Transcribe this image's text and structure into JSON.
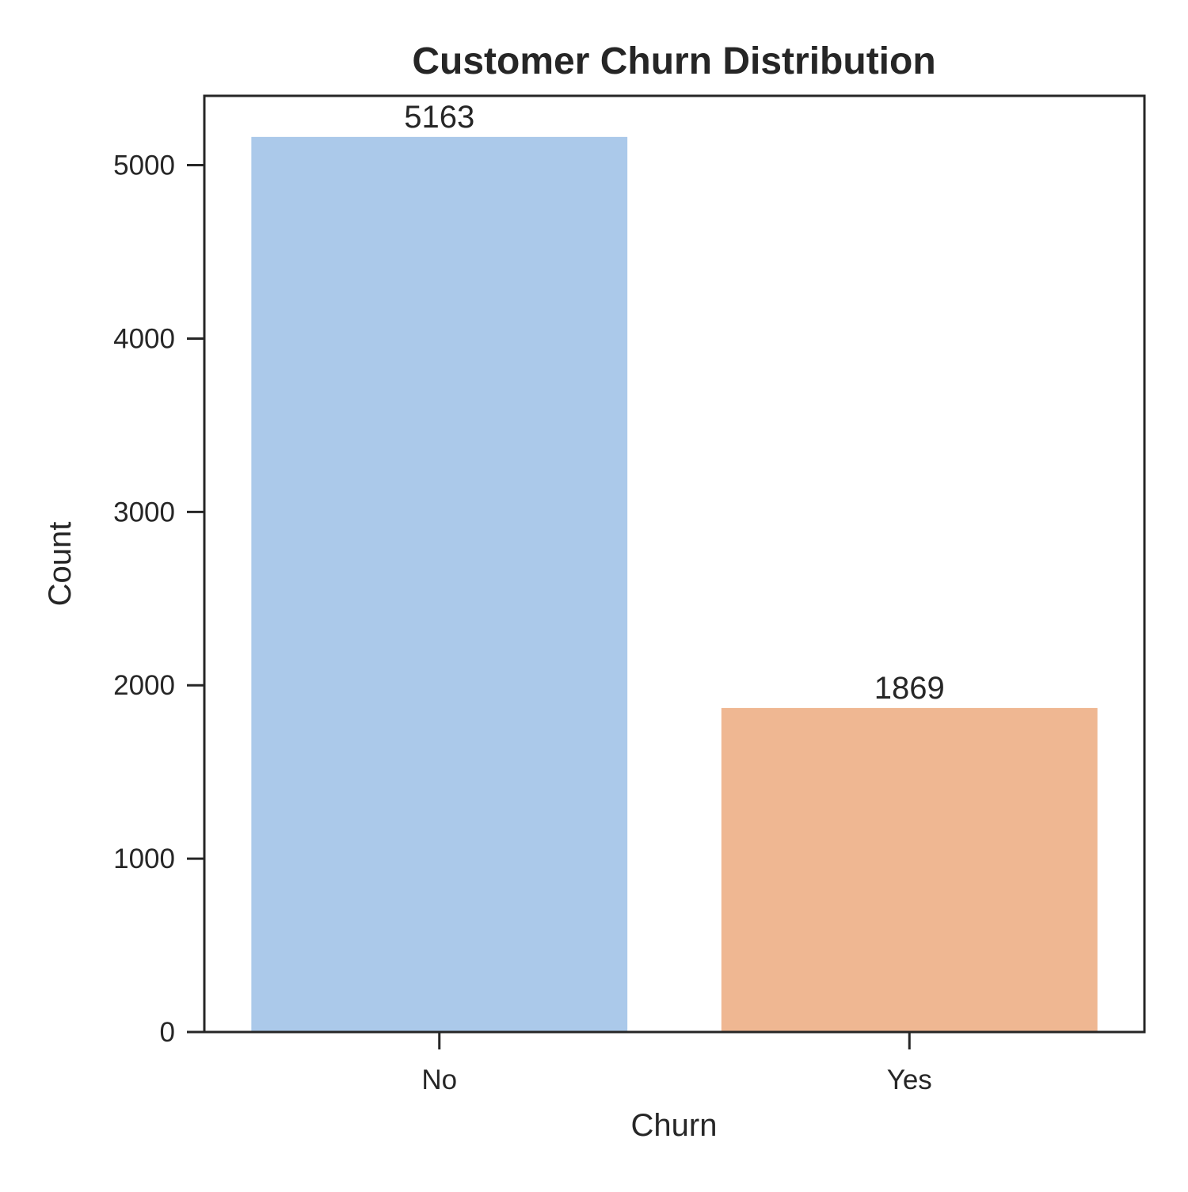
{
  "chart_data": {
    "type": "bar",
    "title": "Customer Churn Distribution",
    "xlabel": "Churn",
    "ylabel": "Count",
    "categories": [
      "No",
      "Yes"
    ],
    "values": [
      5163,
      1869
    ],
    "data_labels": [
      "5163",
      "1869"
    ],
    "colors": [
      "#abc9ea",
      "#efb792"
    ],
    "ylim": [
      0,
      5400
    ],
    "yticks": [
      0,
      1000,
      2000,
      3000,
      4000,
      5000
    ],
    "ytick_labels": [
      "0",
      "1000",
      "2000",
      "3000",
      "4000",
      "5000"
    ],
    "grid": false,
    "legend": "none",
    "axis_color": "#262626"
  }
}
